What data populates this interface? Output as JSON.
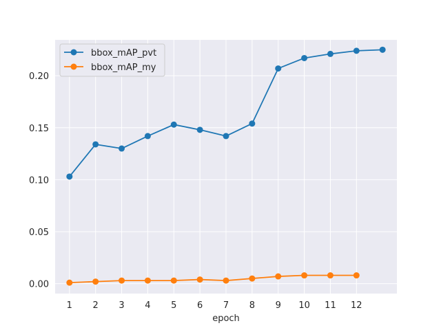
{
  "chart_data": {
    "type": "line",
    "title": "",
    "xlabel": "epoch",
    "ylabel": "",
    "x_ticks": [
      "1",
      "2",
      "3",
      "4",
      "5",
      "6",
      "7",
      "8",
      "9",
      "10",
      "11",
      "12"
    ],
    "y_ticks": [
      "0.00",
      "0.05",
      "0.10",
      "0.15",
      "0.20"
    ],
    "xlim": [
      0.45,
      13.55
    ],
    "ylim": [
      -0.0095,
      0.2345
    ],
    "grid": true,
    "legend_position": "upper-left",
    "series": [
      {
        "name": "bbox_mAP_pvt",
        "color": "#1f77b4",
        "x": [
          1,
          2,
          3,
          4,
          5,
          6,
          7,
          8,
          9,
          10,
          11,
          12,
          13
        ],
        "y": [
          0.103,
          0.134,
          0.13,
          0.142,
          0.153,
          0.148,
          0.142,
          0.154,
          0.207,
          0.217,
          0.221,
          0.224,
          0.225
        ]
      },
      {
        "name": "bbox_mAP_my",
        "color": "#ff7f0e",
        "x": [
          1,
          2,
          3,
          4,
          5,
          6,
          7,
          8,
          9,
          10,
          11,
          12
        ],
        "y": [
          0.001,
          0.002,
          0.003,
          0.003,
          0.003,
          0.004,
          0.003,
          0.005,
          0.007,
          0.008,
          0.008,
          0.008
        ]
      }
    ]
  }
}
